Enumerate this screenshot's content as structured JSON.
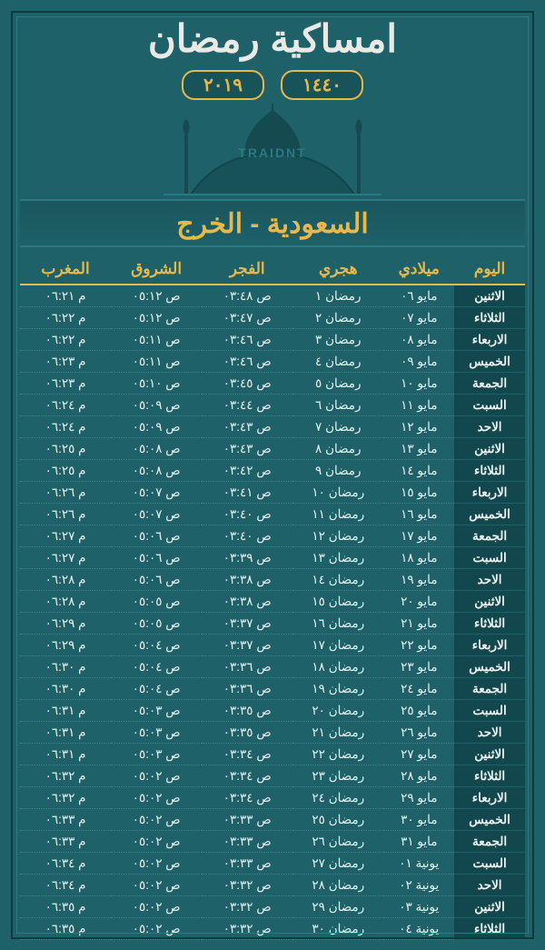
{
  "colors": {
    "background": "#1e6169",
    "frame_dark": "#0d3a40",
    "frame_light": "#2b7a82",
    "accent": "#e9b84a",
    "text": "#eaf2f2",
    "day_bg": "#12474e"
  },
  "header": {
    "title": "امساكية رمضان",
    "year_hijri": "١٤٤٠",
    "year_greg": "٢٠١٩",
    "brand": "TRAIDNT"
  },
  "location": "السعودية - الخرج",
  "columns": [
    "اليوم",
    "ميلادي",
    "هجري",
    "الفجر",
    "الشروق",
    "المغرب"
  ],
  "rows": [
    [
      "الاثنين",
      "مايو ٠٦",
      "رمضان ١",
      "ص ٠٣:٤٨",
      "ص ٠٥:١٢",
      "م ٠٦:٢١"
    ],
    [
      "الثلاثاء",
      "مايو ٠٧",
      "رمضان ٢",
      "ص ٠٣:٤٧",
      "ص ٠٥:١٢",
      "م ٠٦:٢٢"
    ],
    [
      "الاربعاء",
      "مايو ٠٨",
      "رمضان ٣",
      "ص ٠٣:٤٦",
      "ص ٠٥:١١",
      "م ٠٦:٢٢"
    ],
    [
      "الخميس",
      "مايو ٠٩",
      "رمضان ٤",
      "ص ٠٣:٤٦",
      "ص ٠٥:١١",
      "م ٠٦:٢٣"
    ],
    [
      "الجمعة",
      "مايو ١٠",
      "رمضان ٥",
      "ص ٠٣:٤٥",
      "ص ٠٥:١٠",
      "م ٠٦:٢٣"
    ],
    [
      "السبت",
      "مايو ١١",
      "رمضان ٦",
      "ص ٠٣:٤٤",
      "ص ٠٥:٠٩",
      "م ٠٦:٢٤"
    ],
    [
      "الاحد",
      "مايو ١٢",
      "رمضان ٧",
      "ص ٠٣:٤٣",
      "ص ٠٥:٠٩",
      "م ٠٦:٢٤"
    ],
    [
      "الاثنين",
      "مايو ١٣",
      "رمضان ٨",
      "ص ٠٣:٤٣",
      "ص ٠٥:٠٨",
      "م ٠٦:٢٥"
    ],
    [
      "الثلاثاء",
      "مايو ١٤",
      "رمضان ٩",
      "ص ٠٣:٤٢",
      "ص ٠٥:٠٨",
      "م ٠٦:٢٥"
    ],
    [
      "الاربعاء",
      "مايو ١٥",
      "رمضان ١٠",
      "ص ٠٣:٤١",
      "ص ٠٥:٠٧",
      "م ٠٦:٢٦"
    ],
    [
      "الخميس",
      "مايو ١٦",
      "رمضان ١١",
      "ص ٠٣:٤٠",
      "ص ٠٥:٠٧",
      "م ٠٦:٢٦"
    ],
    [
      "الجمعة",
      "مايو ١٧",
      "رمضان ١٢",
      "ص ٠٣:٤٠",
      "ص ٠٥:٠٦",
      "م ٠٦:٢٧"
    ],
    [
      "السبت",
      "مايو ١٨",
      "رمضان ١٣",
      "ص ٠٣:٣٩",
      "ص ٠٥:٠٦",
      "م ٠٦:٢٧"
    ],
    [
      "الاحد",
      "مايو ١٩",
      "رمضان ١٤",
      "ص ٠٣:٣٨",
      "ص ٠٥:٠٦",
      "م ٠٦:٢٨"
    ],
    [
      "الاثنين",
      "مايو ٢٠",
      "رمضان ١٥",
      "ص ٠٣:٣٨",
      "ص ٠٥:٠٥",
      "م ٠٦:٢٨"
    ],
    [
      "الثلاثاء",
      "مايو ٢١",
      "رمضان ١٦",
      "ص ٠٣:٣٧",
      "ص ٠٥:٠٥",
      "م ٠٦:٢٩"
    ],
    [
      "الاربعاء",
      "مايو ٢٢",
      "رمضان ١٧",
      "ص ٠٣:٣٧",
      "ص ٠٥:٠٤",
      "م ٠٦:٢٩"
    ],
    [
      "الخميس",
      "مايو ٢٣",
      "رمضان ١٨",
      "ص ٠٣:٣٦",
      "ص ٠٥:٠٤",
      "م ٠٦:٣٠"
    ],
    [
      "الجمعة",
      "مايو ٢٤",
      "رمضان ١٩",
      "ص ٠٣:٣٦",
      "ص ٠٥:٠٤",
      "م ٠٦:٣٠"
    ],
    [
      "السبت",
      "مايو ٢٥",
      "رمضان ٢٠",
      "ص ٠٣:٣٥",
      "ص ٠٥:٠٣",
      "م ٠٦:٣١"
    ],
    [
      "الاحد",
      "مايو ٢٦",
      "رمضان ٢١",
      "ص ٠٣:٣٥",
      "ص ٠٥:٠٣",
      "م ٠٦:٣١"
    ],
    [
      "الاثنين",
      "مايو ٢٧",
      "رمضان ٢٢",
      "ص ٠٣:٣٤",
      "ص ٠٥:٠٣",
      "م ٠٦:٣١"
    ],
    [
      "الثلاثاء",
      "مايو ٢٨",
      "رمضان ٢٣",
      "ص ٠٣:٣٤",
      "ص ٠٥:٠٢",
      "م ٠٦:٣٢"
    ],
    [
      "الاربعاء",
      "مايو ٢٩",
      "رمضان ٢٤",
      "ص ٠٣:٣٤",
      "ص ٠٥:٠٢",
      "م ٠٦:٣٢"
    ],
    [
      "الخميس",
      "مايو ٣٠",
      "رمضان ٢٥",
      "ص ٠٣:٣٣",
      "ص ٠٥:٠٢",
      "م ٠٦:٣٣"
    ],
    [
      "الجمعة",
      "مايو ٣١",
      "رمضان ٢٦",
      "ص ٠٣:٣٣",
      "ص ٠٥:٠٢",
      "م ٠٦:٣٣"
    ],
    [
      "السبت",
      "يونية ٠١",
      "رمضان ٢٧",
      "ص ٠٣:٣٣",
      "ص ٠٥:٠٢",
      "م ٠٦:٣٤"
    ],
    [
      "الاحد",
      "يونية ٠٢",
      "رمضان ٢٨",
      "ص ٠٣:٣٢",
      "ص ٠٥:٠٢",
      "م ٠٦:٣٤"
    ],
    [
      "الاثنين",
      "يونية ٠٣",
      "رمضان ٢٩",
      "ص ٠٣:٣٢",
      "ص ٠٥:٠٢",
      "م ٠٦:٣٥"
    ],
    [
      "الثلاثاء",
      "يونية ٠٤",
      "رمضان ٣٠",
      "ص ٠٣:٣٢",
      "ص ٠٥:٠٢",
      "م ٠٦:٣٥"
    ]
  ]
}
